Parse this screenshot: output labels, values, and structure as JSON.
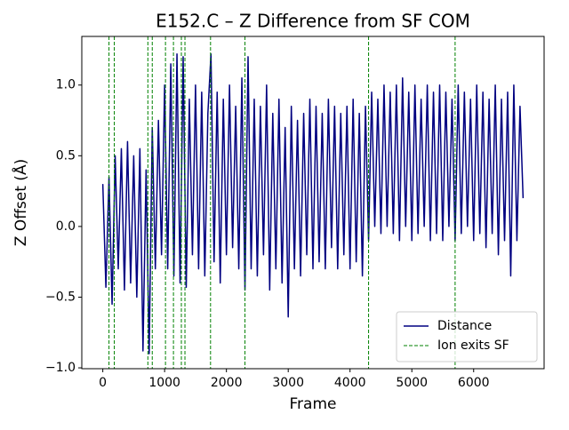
{
  "chart_data": {
    "type": "line",
    "title": "E152.C – Z Difference from SF COM",
    "xlabel": "Frame",
    "ylabel": "Z Offset (Å)",
    "xlim": [
      -340,
      7140
    ],
    "ylim": [
      -1.006,
      1.344
    ],
    "xticks": [
      0,
      1000,
      2000,
      3000,
      4000,
      5000,
      6000
    ],
    "yticks": [
      {
        "value": -1,
        "label": "−1.0"
      },
      {
        "value": -0.5,
        "label": "−0.5"
      },
      {
        "value": 0,
        "label": "0.0"
      },
      0.5,
      {
        "value": 1,
        "label": "1.0"
      }
    ],
    "legend": "lower right",
    "x": [
      0,
      50,
      100,
      150,
      200,
      250,
      300,
      350,
      400,
      450,
      500,
      550,
      600,
      650,
      700,
      750,
      800,
      850,
      900,
      950,
      1000,
      1050,
      1100,
      1150,
      1200,
      1250,
      1300,
      1350,
      1400,
      1450,
      1500,
      1550,
      1600,
      1650,
      1700,
      1750,
      1800,
      1850,
      1900,
      1950,
      2000,
      2050,
      2100,
      2150,
      2200,
      2250,
      2300,
      2350,
      2400,
      2450,
      2500,
      2550,
      2600,
      2650,
      2700,
      2750,
      2800,
      2850,
      2900,
      2950,
      3000,
      3050,
      3100,
      3150,
      3200,
      3250,
      3300,
      3350,
      3400,
      3450,
      3500,
      3550,
      3600,
      3650,
      3700,
      3750,
      3800,
      3850,
      3900,
      3950,
      4000,
      4050,
      4100,
      4150,
      4200,
      4250,
      4300,
      4350,
      4400,
      4450,
      4500,
      4550,
      4600,
      4650,
      4700,
      4750,
      4800,
      4850,
      4900,
      4950,
      5000,
      5050,
      5100,
      5150,
      5200,
      5250,
      5300,
      5350,
      5400,
      5450,
      5500,
      5550,
      5600,
      5650,
      5700,
      5750,
      5800,
      5850,
      5900,
      5950,
      6000,
      6050,
      6100,
      6150,
      6200,
      6250,
      6300,
      6350,
      6400,
      6450,
      6500,
      6550,
      6600,
      6650,
      6700,
      6750,
      6800
    ],
    "series": [
      {
        "name": "Distance",
        "color": "#000080",
        "values": [
          0.3,
          -0.43,
          0.35,
          -0.55,
          0.5,
          -0.3,
          0.55,
          -0.45,
          0.6,
          -0.4,
          0.5,
          -0.5,
          0.55,
          -0.88,
          0.4,
          -0.9,
          0.7,
          -0.3,
          0.75,
          -0.2,
          1.0,
          -0.3,
          1.15,
          -0.35,
          1.22,
          -0.4,
          1.2,
          -0.43,
          0.9,
          -0.2,
          1.0,
          -0.3,
          0.95,
          -0.35,
          0.8,
          1.22,
          -0.25,
          0.95,
          -0.4,
          0.9,
          -0.2,
          1.0,
          -0.15,
          0.85,
          -0.3,
          1.05,
          -0.45,
          1.2,
          -0.3,
          0.9,
          -0.35,
          0.85,
          -0.2,
          1.0,
          -0.45,
          0.8,
          -0.3,
          0.9,
          -0.4,
          0.7,
          -0.64,
          0.85,
          -0.3,
          0.75,
          -0.35,
          0.8,
          -0.2,
          0.9,
          -0.3,
          0.85,
          -0.25,
          0.8,
          -0.3,
          0.9,
          -0.15,
          0.85,
          -0.3,
          0.8,
          -0.2,
          0.85,
          -0.3,
          0.9,
          -0.25,
          0.8,
          -0.35,
          0.85,
          -0.1,
          0.95,
          0.0,
          0.9,
          -0.05,
          1.0,
          0.0,
          0.95,
          -0.05,
          1.0,
          -0.1,
          1.05,
          0.0,
          0.95,
          -0.1,
          1.0,
          -0.05,
          0.9,
          0.0,
          1.0,
          -0.1,
          0.95,
          -0.05,
          1.0,
          -0.1,
          0.95,
          0.0,
          0.9,
          -0.1,
          1.0,
          -0.05,
          0.95,
          0.0,
          0.9,
          -0.1,
          1.0,
          -0.05,
          0.95,
          -0.15,
          0.9,
          -0.05,
          1.0,
          -0.2,
          0.9,
          -0.1,
          0.95,
          -0.35,
          1.0,
          -0.1,
          0.85,
          0.2
        ]
      }
    ],
    "vlines": {
      "name": "Ion exits SF",
      "color": "#008000",
      "x": [
        100,
        186,
        729,
        800,
        1014,
        1143,
        1271,
        1329,
        1743,
        2300,
        4300,
        5700
      ]
    }
  }
}
